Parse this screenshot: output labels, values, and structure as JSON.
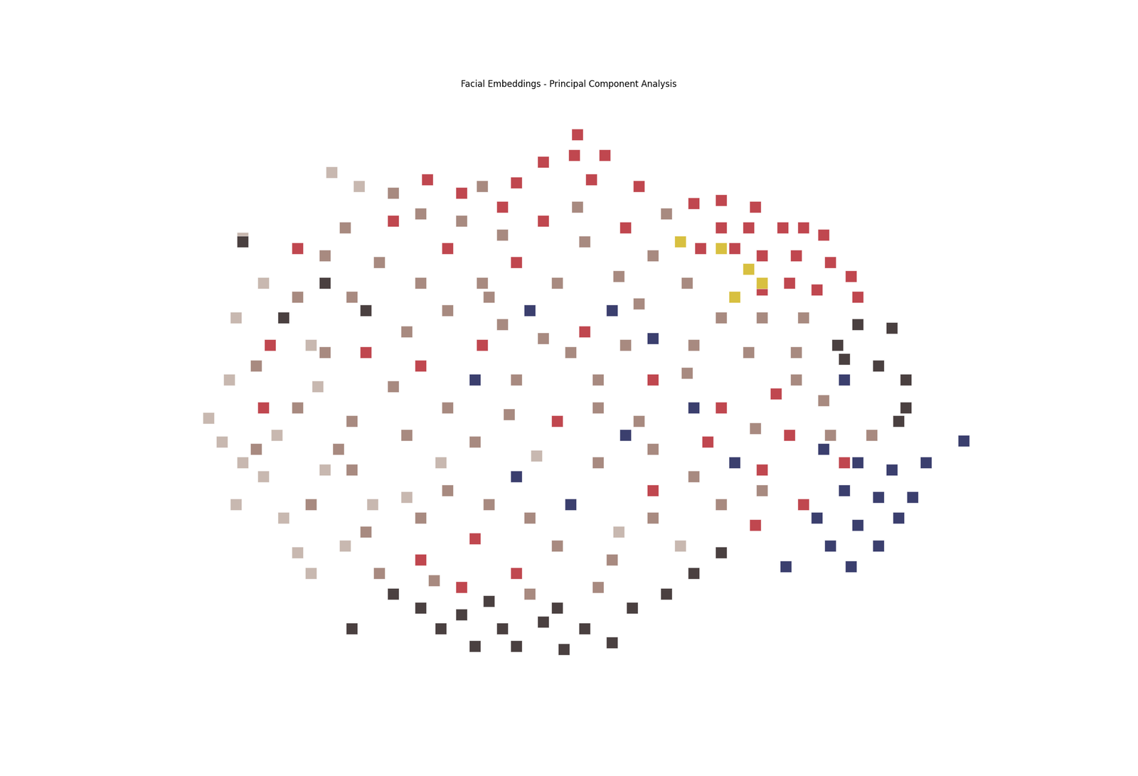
{
  "chart_data": {
    "type": "scatter",
    "title": "Facial Embeddings - Principal Component Analysis",
    "tick_labels": false,
    "marker": "s",
    "series": [
      {
        "color": "#a88a80",
        "x": [
          520,
          650,
          560,
          620,
          790,
          920,
          450,
          680,
          800,
          900,
          420,
          500,
          560,
          650,
          760,
          850,
          950,
          1000,
          1060,
          1120,
          380,
          460,
          600,
          680,
          780,
          880,
          960,
          1040,
          1110,
          320,
          420,
          520,
          600,
          700,
          820,
          1150,
          1220,
          380,
          460,
          540,
          640,
          690,
          820,
          880,
          1050,
          320,
          460,
          600,
          660,
          720,
          820,
          900,
          960,
          1000,
          400,
          480,
          560,
          760,
          840,
          900,
          500,
          580,
          820,
          720,
          440,
          860,
          740,
          660,
          540,
          950,
          1110,
          1060,
          1160
        ],
        "y": [
          750,
          760,
          720,
          710,
          730,
          720,
          700,
          690,
          680,
          660,
          660,
          650,
          620,
          620,
          620,
          630,
          620,
          570,
          570,
          570,
          600,
          600,
          580,
          560,
          520,
          590,
          530,
          520,
          520,
          500,
          520,
          470,
          440,
          480,
          480,
          450,
          400,
          440,
          420,
          400,
          390,
          430,
          440,
          420,
          410,
          380,
          350,
          320,
          300,
          280,
          360,
          380,
          340,
          300,
          300,
          260,
          280,
          240,
          220,
          280,
          200,
          190,
          180,
          170,
          380,
          530,
          540,
          600,
          550,
          490,
          480,
          320,
          400
        ]
      },
      {
        "color": "#c8b8b0",
        "x": [
          430,
          470,
          300,
          290,
          280,
          250,
          270,
          300,
          290,
          330,
          380,
          400,
          360,
          410,
          350,
          420,
          490,
          540,
          450,
          590,
          730,
          850,
          940,
          330,
          400
        ],
        "y": [
          780,
          760,
          685,
          570,
          480,
          425,
          390,
          360,
          300,
          340,
          230,
          200,
          280,
          470,
          400,
          350,
          300,
          310,
          240,
          360,
          370,
          260,
          240,
          620,
          530
        ]
      },
      {
        "color": "#4a4040",
        "x": [
          1200,
          1250,
          1180,
          1230,
          1270,
          1270,
          1260,
          1170,
          620,
          680,
          740,
          800,
          840,
          640,
          700,
          770,
          560,
          590,
          460,
          520,
          870,
          920,
          960,
          1000,
          360,
          420,
          480,
          300,
          760,
          660
        ],
        "y": [
          560,
          555,
          510,
          500,
          480,
          440,
          420,
          530,
          140,
          120,
          130,
          120,
          100,
          95,
          95,
          90,
          150,
          120,
          120,
          170,
          150,
          170,
          200,
          230,
          570,
          620,
          580,
          680,
          150,
          160
        ]
      },
      {
        "color": "#3b3f6e",
        "x": [
          1150,
          1200,
          1250,
          1300,
          1180,
          1230,
          1280,
          1140,
          1200,
          1260,
          1160,
          1230,
          1190,
          1095,
          1355,
          1020,
          960,
          860,
          720,
          840,
          640,
          900,
          1180,
          780,
          700
        ],
        "y": [
          380,
          360,
          350,
          360,
          320,
          310,
          310,
          280,
          270,
          280,
          240,
          240,
          210,
          210,
          392,
          360,
          440,
          400,
          580,
          580,
          480,
          540,
          480,
          300,
          340
        ]
      },
      {
        "color": "#c0474f",
        "x": [
          790,
          785,
          830,
          740,
          810,
          700,
          880,
          960,
          1000,
          1050,
          1090,
          1120,
          1150,
          1000,
          1040,
          970,
          1020,
          1060,
          1110,
          1160,
          1190,
          1100,
          1140,
          1200,
          1060,
          570,
          620,
          680,
          740,
          860,
          520,
          600,
          700,
          380,
          340,
          330,
          480,
          560,
          650,
          800,
          900,
          1000,
          1080,
          1100,
          1060,
          1120,
          1180,
          1050,
          980,
          900,
          760,
          640,
          560,
          700,
          620
        ],
        "y": [
          835,
          805,
          805,
          795,
          770,
          765,
          760,
          735,
          740,
          730,
          700,
          700,
          690,
          700,
          700,
          670,
          670,
          660,
          660,
          650,
          630,
          620,
          610,
          600,
          610,
          770,
          750,
          730,
          710,
          700,
          710,
          670,
          650,
          670,
          530,
          440,
          520,
          500,
          530,
          550,
          480,
          440,
          460,
          400,
          350,
          300,
          360,
          270,
          390,
          320,
          420,
          250,
          220,
          200,
          180
        ]
      },
      {
        "color": "#d8c040",
        "x": [
          1000,
          1040,
          1020,
          940,
          1060
        ],
        "y": [
          670,
          640,
          600,
          680,
          620
        ]
      }
    ]
  }
}
